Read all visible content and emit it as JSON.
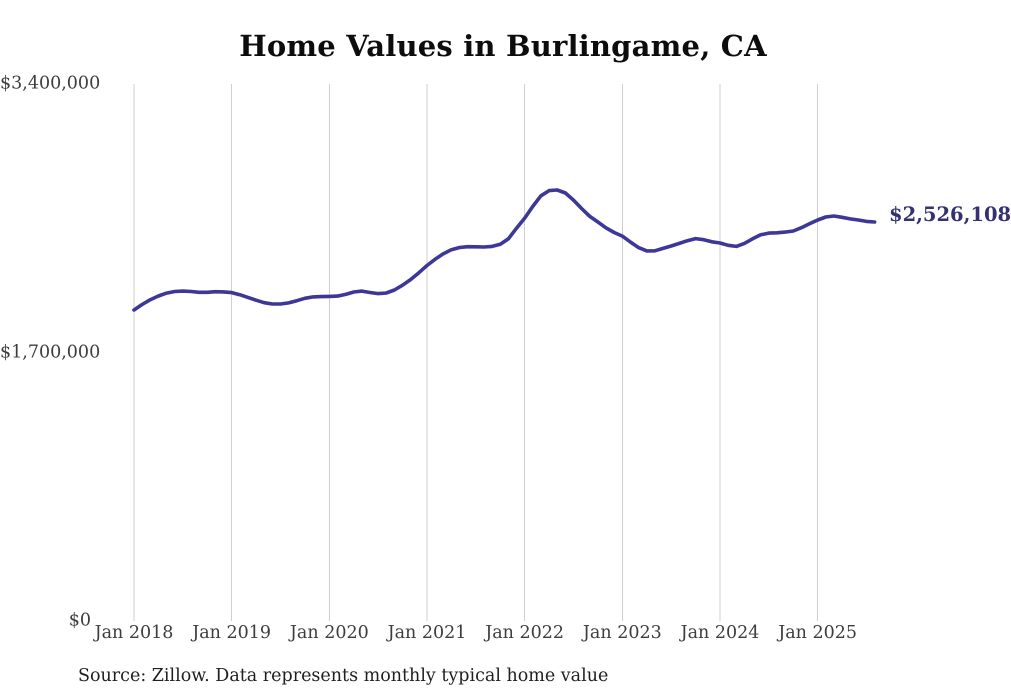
{
  "title": "Home Values in Burlingame, CA",
  "end_label": "$2,526,108",
  "source_note": "Source: Zillow. Data represents monthly typical home value",
  "colors": {
    "line": "#3d3798",
    "end_label": "#333170",
    "grid": "#cfcfcf",
    "tick_text": "#3d3d3d",
    "title_text": "#0d0d0d"
  },
  "chart_data": {
    "type": "line",
    "title": "Home Values in Burlingame, CA",
    "x_start": "2018-01",
    "x_interval": "monthly",
    "x_tick_labels": [
      "Jan 2018",
      "Jan 2019",
      "Jan 2020",
      "Jan 2021",
      "Jan 2022",
      "Jan 2023",
      "Jan 2024",
      "Jan 2025"
    ],
    "y_tick_labels": [
      "$3,400,000",
      "$1,700,000",
      "$0"
    ],
    "y_tick_values": [
      3400000,
      1700000,
      0
    ],
    "ylim": [
      0,
      3400000
    ],
    "grid": "vertical-only",
    "legend": "none",
    "series": [
      {
        "name": "Monthly typical home value",
        "last_value_label": "$2,526,108",
        "values": [
          1969000,
          2004000,
          2034000,
          2058000,
          2076000,
          2086000,
          2089000,
          2086000,
          2081000,
          2081000,
          2085000,
          2084000,
          2079000,
          2066000,
          2049000,
          2031000,
          2015000,
          2007000,
          2007000,
          2014000,
          2028000,
          2043000,
          2052000,
          2054000,
          2055000,
          2057000,
          2068000,
          2083000,
          2089000,
          2080000,
          2073000,
          2077000,
          2096000,
          2126000,
          2162000,
          2205000,
          2251000,
          2290000,
          2325000,
          2351000,
          2365000,
          2370000,
          2369000,
          2368000,
          2372000,
          2386000,
          2420000,
          2487000,
          2551000,
          2625000,
          2692000,
          2725000,
          2729000,
          2710000,
          2665000,
          2612000,
          2562000,
          2526000,
          2489000,
          2460000,
          2437000,
          2399000,
          2364000,
          2343000,
          2344000,
          2359000,
          2374000,
          2391000,
          2408000,
          2421000,
          2414000,
          2401000,
          2393000,
          2379000,
          2372000,
          2391000,
          2420000,
          2445000,
          2456000,
          2458000,
          2462000,
          2469000,
          2490000,
          2515000,
          2539000,
          2558000,
          2564000,
          2556000,
          2546000,
          2539000,
          2530000,
          2526108
        ]
      }
    ]
  }
}
